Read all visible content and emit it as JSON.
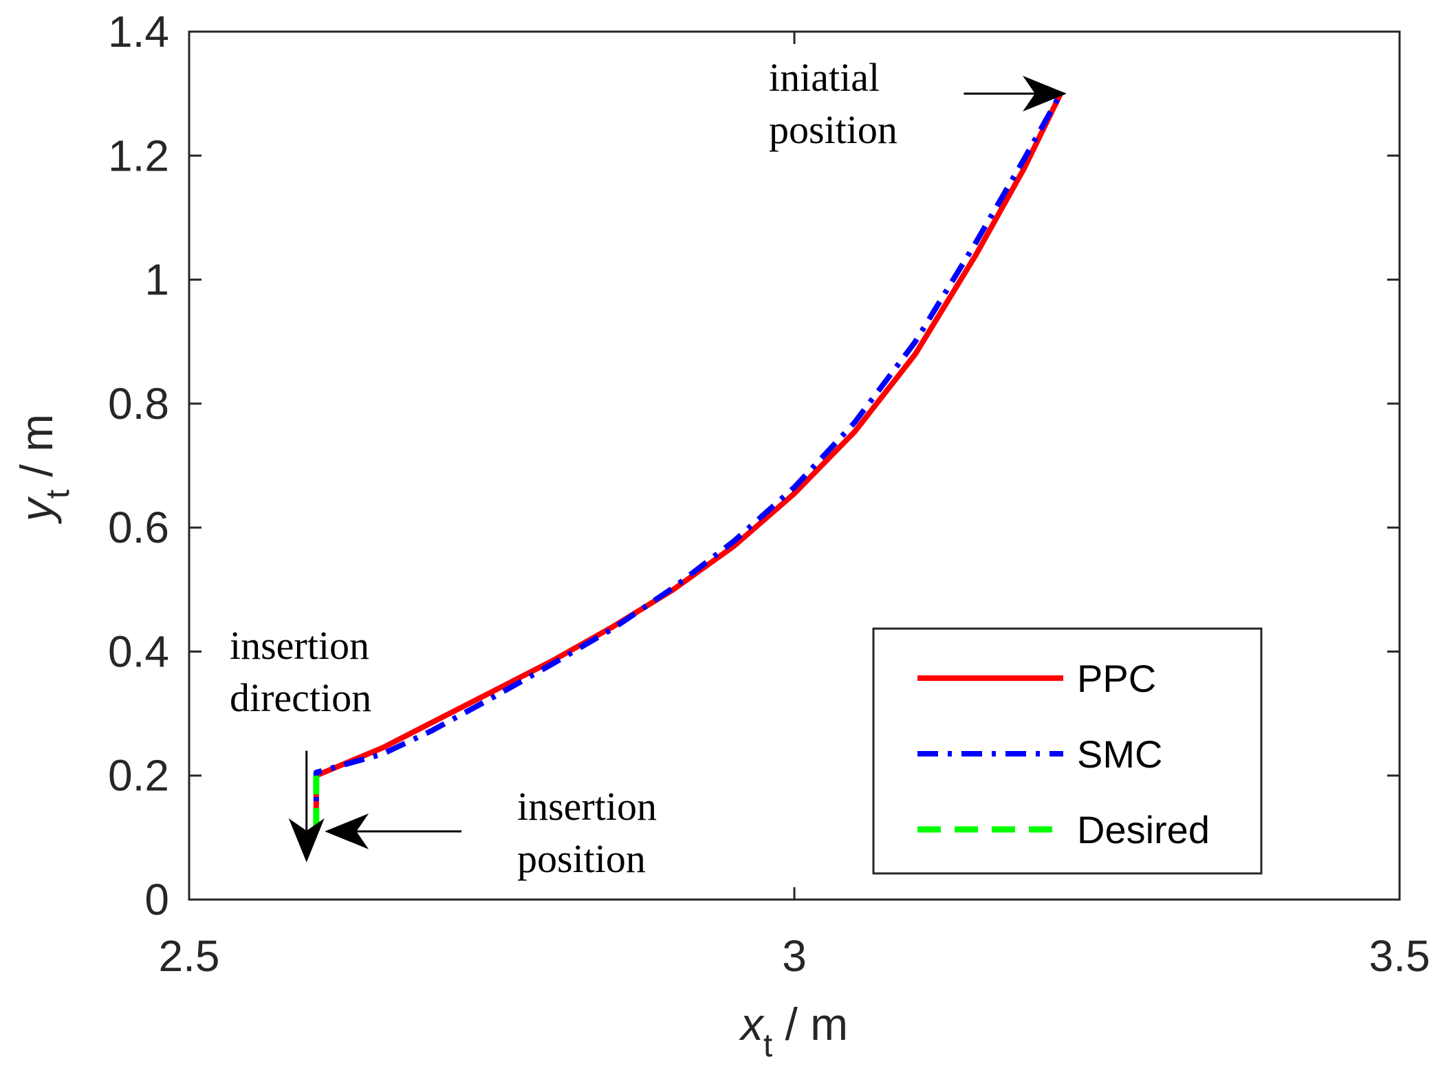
{
  "chart_data": {
    "type": "line",
    "title": "",
    "xlabel": {
      "symbol": "x",
      "subscript": "t",
      "unit": " / m"
    },
    "ylabel": {
      "symbol": "y",
      "subscript": "t",
      "unit": " / m"
    },
    "xlim": [
      2.5,
      3.5
    ],
    "ylim": [
      0,
      1.4
    ],
    "xticks": [
      2.5,
      3,
      3.5
    ],
    "xtick_labels": [
      "2.5",
      "3",
      "3.5"
    ],
    "yticks": [
      0,
      0.2,
      0.4,
      0.6,
      0.8,
      1,
      1.2,
      1.4
    ],
    "ytick_labels": [
      "0",
      "0.2",
      "0.4",
      "0.6",
      "0.8",
      "1",
      "1.2",
      "1.4"
    ],
    "grid": false,
    "legend_position": "bottom-right",
    "series": [
      {
        "name": "PPC",
        "color": "#ff0000",
        "style": "solid",
        "x": [
          2.605,
          2.605,
          2.605,
          2.66,
          2.7,
          2.75,
          2.8,
          2.85,
          2.9,
          2.95,
          3.0,
          3.05,
          3.1,
          3.15,
          3.19,
          3.22
        ],
        "y": [
          0.11,
          0.15,
          0.2,
          0.245,
          0.285,
          0.335,
          0.385,
          0.44,
          0.5,
          0.57,
          0.655,
          0.755,
          0.88,
          1.04,
          1.18,
          1.3
        ]
      },
      {
        "name": "SMC",
        "color": "#0000ff",
        "style": "dashdot",
        "x": [
          2.605,
          2.605,
          2.605,
          2.66,
          2.7,
          2.75,
          2.8,
          2.85,
          2.9,
          2.95,
          3.0,
          3.05,
          3.1,
          3.15,
          3.19,
          3.22
        ],
        "y": [
          0.11,
          0.15,
          0.205,
          0.235,
          0.272,
          0.325,
          0.38,
          0.437,
          0.503,
          0.578,
          0.665,
          0.77,
          0.9,
          1.06,
          1.195,
          1.3
        ]
      },
      {
        "name": "Desired",
        "color": "#00ff00",
        "style": "dashed",
        "x": [
          2.605,
          2.605
        ],
        "y": [
          0.11,
          0.2
        ]
      }
    ],
    "annotations": [
      {
        "lines": [
          "iniatial",
          "position"
        ],
        "arrow_to": [
          3.225,
          1.3
        ],
        "arrow_from": [
          3.14,
          1.3
        ]
      },
      {
        "lines": [
          "insertion",
          "position"
        ],
        "arrow_to": [
          2.612,
          0.11
        ],
        "arrow_from": [
          2.725,
          0.11
        ]
      },
      {
        "lines": [
          "insertion",
          "direction"
        ],
        "arrow_to": [
          2.597,
          0.06
        ],
        "arrow_from": [
          2.597,
          0.24
        ]
      }
    ]
  }
}
